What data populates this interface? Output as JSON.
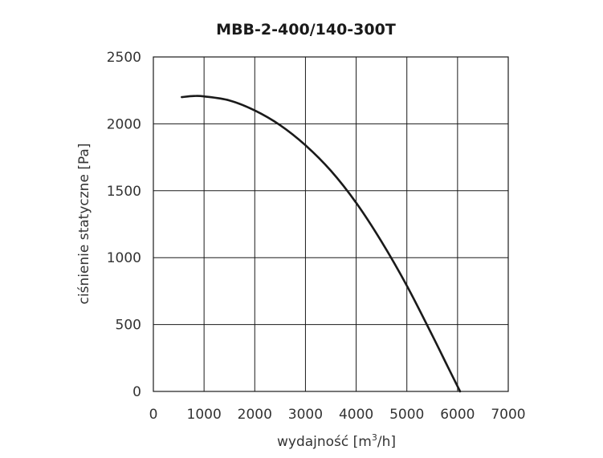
{
  "chart_data": {
    "type": "line",
    "title": "MBB-2-400/140-300T",
    "xlabel_main": "wydajność [m",
    "xlabel_sup": "3",
    "xlabel_end": "/h]",
    "ylabel": "ciśnienie statyczne [Pa]",
    "xlim": [
      0,
      7000
    ],
    "ylim": [
      0,
      2500
    ],
    "x_ticks": [
      0,
      1000,
      2000,
      3000,
      4000,
      5000,
      6000,
      7000
    ],
    "y_ticks": [
      0,
      500,
      1000,
      1500,
      2000,
      2500
    ],
    "grid": true,
    "line_color": "#1a1a1a",
    "series": [
      {
        "x": [
          560,
          800,
          1000,
          1500,
          2000,
          2500,
          3000,
          3500,
          4000,
          4500,
          5000,
          5500,
          5800,
          6050
        ],
        "y": [
          2200,
          2208,
          2205,
          2175,
          2100,
          1990,
          1840,
          1650,
          1410,
          1120,
          790,
          420,
          190,
          0
        ]
      }
    ]
  }
}
